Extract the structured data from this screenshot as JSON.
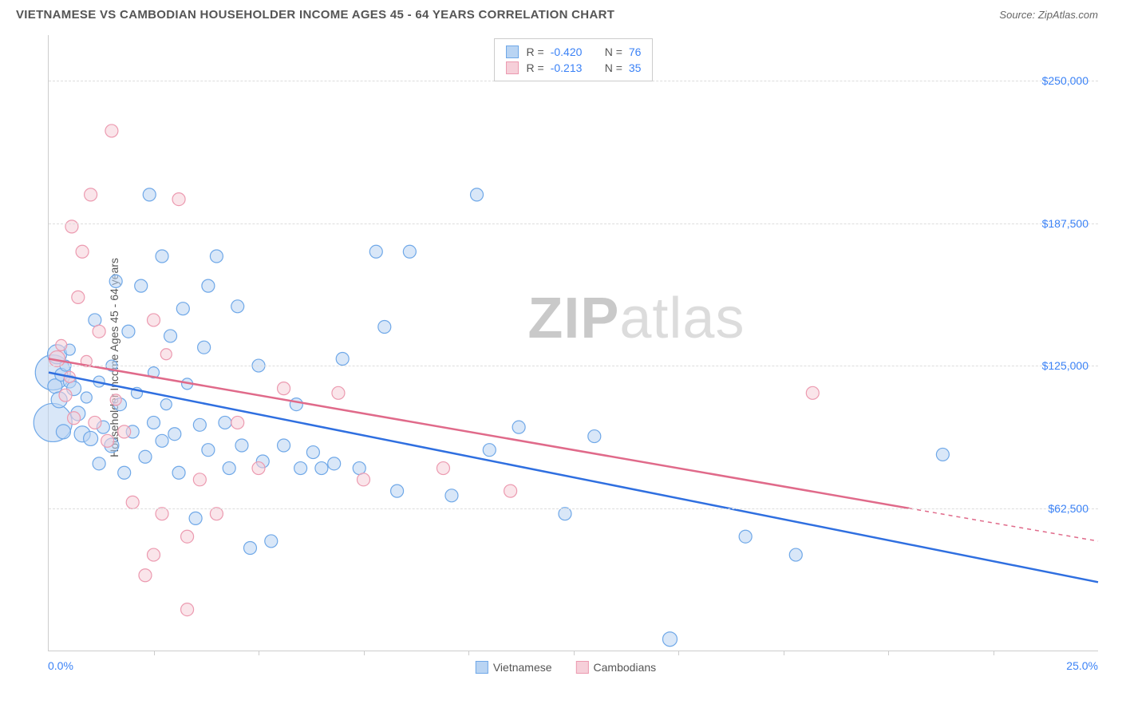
{
  "title": "VIETNAMESE VS CAMBODIAN HOUSEHOLDER INCOME AGES 45 - 64 YEARS CORRELATION CHART",
  "source_label": "Source:",
  "source_value": "ZipAtlas.com",
  "ylabel": "Householder Income Ages 45 - 64 years",
  "watermark_a": "ZIP",
  "watermark_b": "atlas",
  "chart": {
    "type": "scatter",
    "xlim": [
      0,
      25
    ],
    "ylim": [
      0,
      270000
    ],
    "x_start_label": "0.0%",
    "x_end_label": "25.0%",
    "xtick_positions": [
      2.5,
      5.0,
      7.5,
      10.0,
      12.5,
      15.0,
      17.5,
      20.0,
      22.5
    ],
    "ygrid": [
      {
        "value": 62500,
        "label": "$62,500"
      },
      {
        "value": 125000,
        "label": "$125,000"
      },
      {
        "value": 187500,
        "label": "$187,500"
      },
      {
        "value": 250000,
        "label": "$250,000"
      }
    ],
    "background_color": "#ffffff",
    "grid_color": "#dddddd",
    "axis_color": "#cccccc",
    "tick_label_color": "#3b82f6",
    "series": [
      {
        "key": "vietnamese",
        "label": "Vietnamese",
        "fill": "#b9d4f3",
        "stroke": "#6fa8e8",
        "line_color": "#2f6fe0",
        "r_value": "-0.420",
        "n_value": "76",
        "trend": {
          "x1": 0.0,
          "y1": 122000,
          "x2": 25.0,
          "y2": 30000,
          "dash_from_x": null
        },
        "points": [
          {
            "x": 0.1,
            "y": 122000,
            "r": 22
          },
          {
            "x": 0.1,
            "y": 100000,
            "r": 24
          },
          {
            "x": 0.15,
            "y": 116000,
            "r": 9
          },
          {
            "x": 0.2,
            "y": 130000,
            "r": 12
          },
          {
            "x": 0.25,
            "y": 110000,
            "r": 10
          },
          {
            "x": 0.3,
            "y": 121000,
            "r": 8
          },
          {
            "x": 0.35,
            "y": 96000,
            "r": 9
          },
          {
            "x": 0.4,
            "y": 125000,
            "r": 7
          },
          {
            "x": 0.5,
            "y": 118000,
            "r": 8
          },
          {
            "x": 0.5,
            "y": 132000,
            "r": 7
          },
          {
            "x": 0.6,
            "y": 115000,
            "r": 9
          },
          {
            "x": 0.7,
            "y": 104000,
            "r": 9
          },
          {
            "x": 0.8,
            "y": 95000,
            "r": 10
          },
          {
            "x": 0.9,
            "y": 111000,
            "r": 7
          },
          {
            "x": 1.0,
            "y": 93000,
            "r": 9
          },
          {
            "x": 1.1,
            "y": 145000,
            "r": 8
          },
          {
            "x": 1.2,
            "y": 82000,
            "r": 8
          },
          {
            "x": 1.2,
            "y": 118000,
            "r": 7
          },
          {
            "x": 1.3,
            "y": 98000,
            "r": 8
          },
          {
            "x": 1.5,
            "y": 90000,
            "r": 9
          },
          {
            "x": 1.5,
            "y": 125000,
            "r": 7
          },
          {
            "x": 1.6,
            "y": 162000,
            "r": 8
          },
          {
            "x": 1.7,
            "y": 108000,
            "r": 8
          },
          {
            "x": 1.8,
            "y": 78000,
            "r": 8
          },
          {
            "x": 1.9,
            "y": 140000,
            "r": 8
          },
          {
            "x": 2.0,
            "y": 96000,
            "r": 8
          },
          {
            "x": 2.1,
            "y": 113000,
            "r": 7
          },
          {
            "x": 2.2,
            "y": 160000,
            "r": 8
          },
          {
            "x": 2.3,
            "y": 85000,
            "r": 8
          },
          {
            "x": 2.4,
            "y": 200000,
            "r": 8
          },
          {
            "x": 2.5,
            "y": 100000,
            "r": 8
          },
          {
            "x": 2.5,
            "y": 122000,
            "r": 7
          },
          {
            "x": 2.7,
            "y": 92000,
            "r": 8
          },
          {
            "x": 2.7,
            "y": 173000,
            "r": 8
          },
          {
            "x": 2.8,
            "y": 108000,
            "r": 7
          },
          {
            "x": 2.9,
            "y": 138000,
            "r": 8
          },
          {
            "x": 3.0,
            "y": 95000,
            "r": 8
          },
          {
            "x": 3.1,
            "y": 78000,
            "r": 8
          },
          {
            "x": 3.2,
            "y": 150000,
            "r": 8
          },
          {
            "x": 3.3,
            "y": 117000,
            "r": 7
          },
          {
            "x": 3.5,
            "y": 58000,
            "r": 8
          },
          {
            "x": 3.6,
            "y": 99000,
            "r": 8
          },
          {
            "x": 3.7,
            "y": 133000,
            "r": 8
          },
          {
            "x": 3.8,
            "y": 160000,
            "r": 8
          },
          {
            "x": 3.8,
            "y": 88000,
            "r": 8
          },
          {
            "x": 4.0,
            "y": 173000,
            "r": 8
          },
          {
            "x": 4.2,
            "y": 100000,
            "r": 8
          },
          {
            "x": 4.3,
            "y": 80000,
            "r": 8
          },
          {
            "x": 4.5,
            "y": 151000,
            "r": 8
          },
          {
            "x": 4.6,
            "y": 90000,
            "r": 8
          },
          {
            "x": 4.8,
            "y": 45000,
            "r": 8
          },
          {
            "x": 5.0,
            "y": 125000,
            "r": 8
          },
          {
            "x": 5.1,
            "y": 83000,
            "r": 8
          },
          {
            "x": 5.3,
            "y": 48000,
            "r": 8
          },
          {
            "x": 5.6,
            "y": 90000,
            "r": 8
          },
          {
            "x": 5.9,
            "y": 108000,
            "r": 8
          },
          {
            "x": 6.0,
            "y": 80000,
            "r": 8
          },
          {
            "x": 6.3,
            "y": 87000,
            "r": 8
          },
          {
            "x": 6.5,
            "y": 80000,
            "r": 8
          },
          {
            "x": 6.8,
            "y": 82000,
            "r": 8
          },
          {
            "x": 7.0,
            "y": 128000,
            "r": 8
          },
          {
            "x": 7.4,
            "y": 80000,
            "r": 8
          },
          {
            "x": 7.8,
            "y": 175000,
            "r": 8
          },
          {
            "x": 8.0,
            "y": 142000,
            "r": 8
          },
          {
            "x": 8.3,
            "y": 70000,
            "r": 8
          },
          {
            "x": 8.6,
            "y": 175000,
            "r": 8
          },
          {
            "x": 9.6,
            "y": 68000,
            "r": 8
          },
          {
            "x": 10.2,
            "y": 200000,
            "r": 8
          },
          {
            "x": 10.5,
            "y": 88000,
            "r": 8
          },
          {
            "x": 11.2,
            "y": 98000,
            "r": 8
          },
          {
            "x": 12.3,
            "y": 60000,
            "r": 8
          },
          {
            "x": 13.0,
            "y": 94000,
            "r": 8
          },
          {
            "x": 14.8,
            "y": 5000,
            "r": 9
          },
          {
            "x": 16.6,
            "y": 50000,
            "r": 8
          },
          {
            "x": 17.8,
            "y": 42000,
            "r": 8
          },
          {
            "x": 21.3,
            "y": 86000,
            "r": 8
          }
        ]
      },
      {
        "key": "cambodians",
        "label": "Cambodians",
        "fill": "#f6cfd9",
        "stroke": "#ec9ab0",
        "line_color": "#e06a8a",
        "r_value": "-0.213",
        "n_value": "35",
        "trend": {
          "x1": 0.0,
          "y1": 128000,
          "x2": 25.0,
          "y2": 48000,
          "dash_from_x": 20.5
        },
        "points": [
          {
            "x": 0.2,
            "y": 128000,
            "r": 10
          },
          {
            "x": 0.3,
            "y": 134000,
            "r": 7
          },
          {
            "x": 0.4,
            "y": 112000,
            "r": 8
          },
          {
            "x": 0.5,
            "y": 120000,
            "r": 7
          },
          {
            "x": 0.55,
            "y": 186000,
            "r": 8
          },
          {
            "x": 0.6,
            "y": 102000,
            "r": 8
          },
          {
            "x": 0.7,
            "y": 155000,
            "r": 8
          },
          {
            "x": 0.8,
            "y": 175000,
            "r": 8
          },
          {
            "x": 0.9,
            "y": 127000,
            "r": 7
          },
          {
            "x": 1.0,
            "y": 200000,
            "r": 8
          },
          {
            "x": 1.1,
            "y": 100000,
            "r": 8
          },
          {
            "x": 1.2,
            "y": 140000,
            "r": 8
          },
          {
            "x": 1.4,
            "y": 92000,
            "r": 8
          },
          {
            "x": 1.5,
            "y": 228000,
            "r": 8
          },
          {
            "x": 1.6,
            "y": 110000,
            "r": 7
          },
          {
            "x": 1.8,
            "y": 96000,
            "r": 8
          },
          {
            "x": 2.0,
            "y": 65000,
            "r": 8
          },
          {
            "x": 2.3,
            "y": 33000,
            "r": 8
          },
          {
            "x": 2.5,
            "y": 145000,
            "r": 8
          },
          {
            "x": 2.5,
            "y": 42000,
            "r": 8
          },
          {
            "x": 2.7,
            "y": 60000,
            "r": 8
          },
          {
            "x": 2.8,
            "y": 130000,
            "r": 7
          },
          {
            "x": 3.1,
            "y": 198000,
            "r": 8
          },
          {
            "x": 3.3,
            "y": 50000,
            "r": 8
          },
          {
            "x": 3.3,
            "y": 18000,
            "r": 8
          },
          {
            "x": 3.6,
            "y": 75000,
            "r": 8
          },
          {
            "x": 4.0,
            "y": 60000,
            "r": 8
          },
          {
            "x": 4.5,
            "y": 100000,
            "r": 8
          },
          {
            "x": 5.0,
            "y": 80000,
            "r": 8
          },
          {
            "x": 5.6,
            "y": 115000,
            "r": 8
          },
          {
            "x": 6.9,
            "y": 113000,
            "r": 8
          },
          {
            "x": 7.5,
            "y": 75000,
            "r": 8
          },
          {
            "x": 9.4,
            "y": 80000,
            "r": 8
          },
          {
            "x": 11.0,
            "y": 70000,
            "r": 8
          },
          {
            "x": 18.2,
            "y": 113000,
            "r": 8
          }
        ]
      }
    ]
  },
  "corr_box": {
    "r_label": "R =",
    "n_label": "N ="
  },
  "legend_bottom": [
    "vietnamese",
    "cambodians"
  ]
}
